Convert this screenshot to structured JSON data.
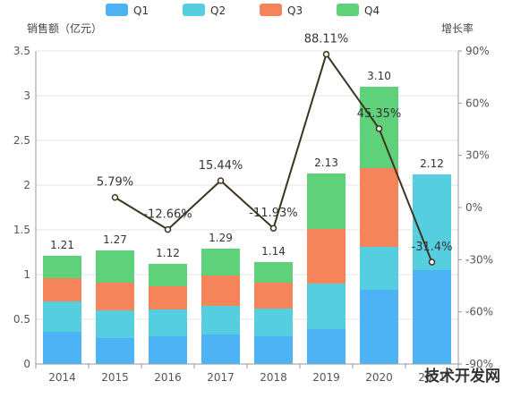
{
  "chart_data": {
    "type": "bar",
    "categories": [
      "2014",
      "2015",
      "2016",
      "2017",
      "2018",
      "2019",
      "2020",
      "2021"
    ],
    "series": [
      {
        "name": "Q1",
        "color": "#4db3f5",
        "values": [
          0.36,
          0.29,
          0.31,
          0.33,
          0.31,
          0.39,
          0.83,
          1.05
        ]
      },
      {
        "name": "Q2",
        "color": "#55cfe0",
        "values": [
          0.34,
          0.31,
          0.3,
          0.32,
          0.31,
          0.51,
          0.48,
          1.07
        ]
      },
      {
        "name": "Q3",
        "color": "#f5845a",
        "values": [
          0.26,
          0.31,
          0.26,
          0.34,
          0.29,
          0.61,
          0.88,
          0
        ]
      },
      {
        "name": "Q4",
        "color": "#5fd17a",
        "values": [
          0.25,
          0.36,
          0.25,
          0.3,
          0.23,
          0.62,
          0.91,
          0
        ]
      }
    ],
    "totals": [
      1.21,
      1.27,
      1.12,
      1.29,
      1.14,
      2.13,
      3.1,
      2.12
    ],
    "total_labels": [
      "1.21",
      "1.27",
      "1.12",
      "1.29",
      "1.14",
      "2.13",
      "3.10",
      "2.12"
    ],
    "growth_rate": {
      "color": "#3d3420",
      "values": [
        null,
        5.79,
        -12.66,
        15.44,
        -11.93,
        88.11,
        45.35,
        -31.4
      ],
      "labels": [
        "",
        "5.79%",
        "-12.66%",
        "15.44%",
        "-11.93%",
        "88.11%",
        "45.35%",
        "-31.4%"
      ]
    },
    "ylabel": "销售额（亿元）",
    "y2label": "增长率",
    "ylim": [
      0,
      3.5
    ],
    "y_ticks": [
      "0",
      "0.5",
      "1",
      "1.5",
      "2",
      "2.5",
      "3",
      "3.5"
    ],
    "y2lim": [
      -90,
      90
    ],
    "y2_ticks": [
      "-90%",
      "-60%",
      "-30%",
      "0%",
      "30%",
      "60%",
      "90%"
    ],
    "legend_position": "top",
    "grid": true
  },
  "watermark": "技术开发网"
}
